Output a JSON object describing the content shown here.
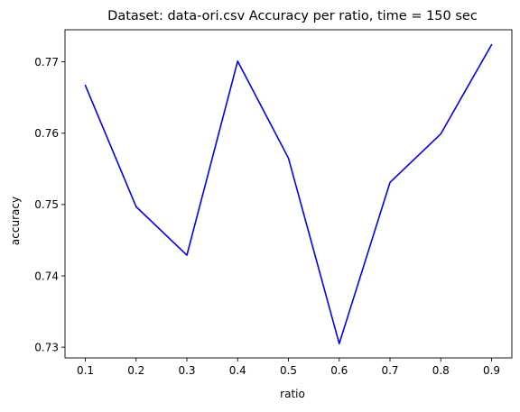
{
  "chart_data": {
    "type": "line",
    "title": "Dataset: data-ori.csv Accuracy per ratio, time = 150 sec",
    "xlabel": "ratio",
    "ylabel": "accuracy",
    "x": [
      0.1,
      0.2,
      0.3,
      0.4,
      0.5,
      0.6,
      0.7,
      0.8,
      0.9
    ],
    "x_tick_labels": [
      "0.1",
      "0.2",
      "0.3",
      "0.4",
      "0.5",
      "0.6",
      "0.7",
      "0.8",
      "0.9"
    ],
    "y_ticks": [
      0.73,
      0.74,
      0.75,
      0.76,
      0.77
    ],
    "y_tick_labels": [
      "0.73",
      "0.74",
      "0.75",
      "0.76",
      "0.77"
    ],
    "xlim": [
      0.06,
      0.94
    ],
    "ylim": [
      0.7285,
      0.7745
    ],
    "grid": false,
    "series": [
      {
        "color": "#0000ff",
        "values": [
          0.7667,
          0.7497,
          0.7429,
          0.7701,
          0.7565,
          0.7305,
          0.7531,
          0.7599,
          0.7724
        ]
      }
    ]
  }
}
